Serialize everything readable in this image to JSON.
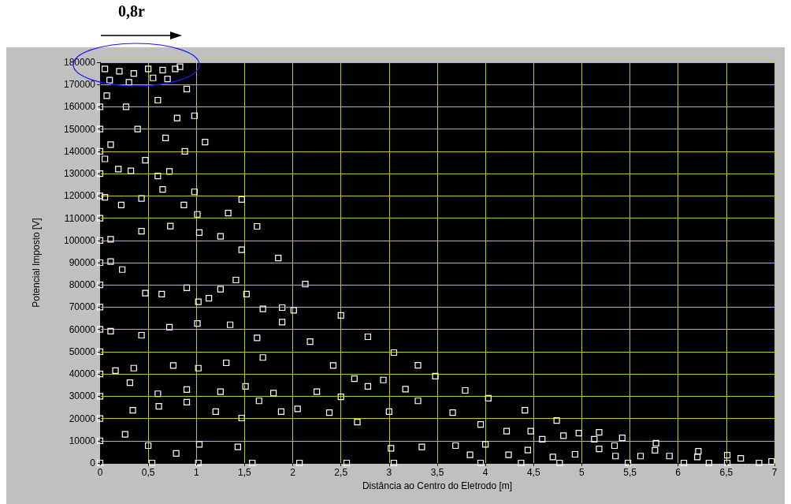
{
  "chart_data": {
    "type": "scatter",
    "xlabel": "Distância ao Centro do Eletrodo [m]",
    "ylabel": "Potencial Imposto [V]",
    "annotations": [
      "0,8r"
    ],
    "xlim": [
      0,
      7
    ],
    "xticks": [
      0,
      {
        "value": 0.5,
        "label": "0,5"
      },
      1,
      {
        "value": 1.5,
        "label": "1,5"
      },
      2,
      {
        "value": 2.5,
        "label": "2,5"
      },
      3,
      {
        "value": 3.5,
        "label": "3,5"
      },
      4,
      {
        "value": 4.5,
        "label": "4,5"
      },
      5,
      {
        "value": 5.5,
        "label": "5,5"
      },
      6,
      {
        "value": 6.5,
        "label": "6,5"
      },
      7
    ],
    "ylim": [
      0,
      180000
    ],
    "yticks": [
      0,
      10000,
      20000,
      30000,
      40000,
      50000,
      60000,
      70000,
      80000,
      90000,
      100000,
      110000,
      120000,
      130000,
      140000,
      150000,
      160000,
      170000,
      180000
    ],
    "grid": true,
    "marker": "square",
    "series": [
      {
        "color": "#ffffff",
        "x": [
          0.83,
          0.9,
          0.98,
          1.09,
          1.47,
          1.63,
          1.85,
          2.13,
          2.5,
          2.78,
          3.05,
          3.3,
          3.48,
          3.79,
          4.03,
          4.41,
          4.74,
          5.18,
          5.42,
          5.77,
          6.21,
          6.51,
          6.97,
          0.11,
          0.23,
          0.47,
          0.64,
          0.9,
          1.02,
          1.13,
          1.25,
          1.41,
          1.52,
          1.69,
          1.89,
          2.01,
          0.34,
          0.6,
          0.9,
          1.2,
          1.43,
          1.58,
          2.07,
          1.02,
          0.54,
          0.26,
          0.5,
          0.79,
          1.03,
          1.47,
          1.88,
          2.38,
          2.67,
          3.02,
          3.05,
          2.56,
          3.34,
          3.3,
          3.0,
          2.78,
          2.5,
          2.25,
          2.05,
          1.8,
          1.65,
          1.51,
          1.25,
          1.02,
          0.9,
          0.61,
          0.31,
          0.16,
          0.11,
          0.43,
          0.72,
          1.01,
          1.35,
          1.63,
          1.89,
          2.18,
          2.42,
          2.64,
          2.94,
          3.17,
          1.69,
          1.31,
          0.76,
          0.35,
          0.05,
          0.22,
          0.43,
          0.65,
          0.87,
          0.6,
          0.32,
          0.05,
          0.98,
          1.01,
          0.73,
          0.43,
          0.11,
          1.03,
          1.25,
          1.47,
          1.33,
          3.66,
          3.69,
          3.95,
          4.0,
          3.84,
          3.95,
          4.22,
          4.24,
          4.37,
          4.47,
          4.44,
          4.59,
          4.7,
          4.77,
          4.81,
          4.93,
          4.97,
          5.13,
          5.18,
          5.34,
          5.35,
          5.48,
          5.61,
          5.76,
          5.91,
          6.06,
          6.32,
          6.2,
          6.65,
          6.84,
          6.51,
          0.05,
          0.2,
          0.35,
          0.5,
          0.65,
          0.78,
          0.1,
          0.3,
          0.55,
          0.7,
          0.07,
          0.27,
          0.6,
          0.8,
          0.39,
          0.11,
          0.68,
          0.88,
          0.47,
          0.19,
          0.72,
          0,
          0,
          0,
          0,
          0,
          0,
          0,
          0,
          0,
          0,
          0,
          0,
          0,
          0,
          0,
          0,
          0
        ],
        "values": [
          178000,
          168000,
          156000,
          144200,
          118400,
          106300,
          92100,
          80400,
          66300,
          56700,
          49600,
          43900,
          39000,
          32600,
          29100,
          23700,
          19100,
          13800,
          11300,
          8900,
          5300,
          3500,
          700,
          90500,
          86900,
          76300,
          75900,
          78700,
          72400,
          74000,
          78100,
          82200,
          75900,
          69200,
          69800,
          68600,
          23700,
          31100,
          27300,
          23100,
          7200,
          0,
          0,
          0,
          0,
          12900,
          7800,
          4300,
          8400,
          20200,
          23100,
          22600,
          18400,
          6600,
          0,
          0,
          7200,
          27900,
          23100,
          34400,
          29700,
          32000,
          24300,
          31400,
          27900,
          34400,
          32000,
          42600,
          33000,
          25500,
          36100,
          41500,
          59200,
          57400,
          61000,
          62700,
          62100,
          56200,
          63300,
          54500,
          43800,
          37900,
          37300,
          33200,
          47400,
          45000,
          43800,
          42600,
          119400,
          115900,
          118800,
          122900,
          115900,
          128900,
          131200,
          136600,
          121800,
          111700,
          106400,
          104100,
          100500,
          103500,
          101800,
          95800,
          112300,
          22600,
          7800,
          17300,
          8400,
          3700,
          0,
          14300,
          3700,
          0,
          14300,
          5800,
          10700,
          2700,
          0,
          12300,
          3900,
          13400,
          10700,
          6300,
          7800,
          3100,
          0,
          3100,
          5700,
          3100,
          0,
          0,
          2700,
          2100,
          0,
          0,
          177000,
          176000,
          175000,
          177000,
          176500,
          177000,
          172000,
          171000,
          173000,
          172500,
          165000,
          160000,
          163000,
          155000,
          150000,
          143000,
          146000,
          140000,
          136000,
          132000,
          131000,
          0,
          10000,
          20000,
          30000,
          40000,
          50000,
          60000,
          70000,
          80000,
          90000,
          100000,
          110000,
          120000,
          130000,
          140000,
          150000,
          160000
        ]
      }
    ]
  }
}
